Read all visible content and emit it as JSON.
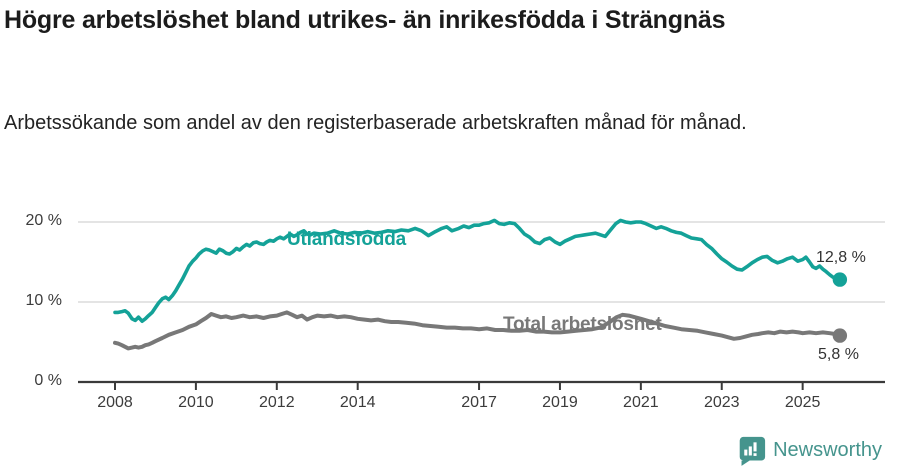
{
  "page": {
    "title": "Högre arbetslöshet bland utrikes- än inrikesfödda i Strängnäs",
    "subtitle": "Arbetssökande som andel av den registerbaserade arbetskraften månad för månad."
  },
  "footer": {
    "brand": "Newsworthy",
    "logo_icon": "newsworthy-speech-bubble-bar-chart-icon",
    "brand_color": "#45948d"
  },
  "chart_data": {
    "type": "line",
    "title": "Högre arbetslöshet bland utrikes- än inrikesfödda i Strängnäs",
    "subtitle": "Arbetssökande som andel av den registerbaserade arbetskraften månad för månad.",
    "grid": "horizontal",
    "legend": "inline-labels",
    "colors": {
      "grid": "#dcdcdc",
      "axis": "#3a3a3a",
      "tick_text": "#3c3c3c"
    },
    "x_axis": {
      "range": [
        2008,
        2026.1
      ],
      "ticks": [
        "2008",
        "2010",
        "2012",
        "2014",
        "2017",
        "2019",
        "2021",
        "2023",
        "2025"
      ],
      "tick_years": [
        2008,
        2010,
        2012,
        2014,
        2017,
        2019,
        2021,
        2023,
        2025
      ]
    },
    "y_axis": {
      "range": [
        0,
        22
      ],
      "unit": "%",
      "ticks": [
        {
          "label": "0 %",
          "value": 0
        },
        {
          "label": "10 %",
          "value": 10
        },
        {
          "label": "20 %",
          "value": 20
        }
      ]
    },
    "series": [
      {
        "name": "Utlandsfödda",
        "color": "#14a298",
        "end_label": "12,8 %",
        "end_value": 12.8,
        "points": [
          [
            2008.0,
            8.7
          ],
          [
            2008.08,
            8.7
          ],
          [
            2008.17,
            8.8
          ],
          [
            2008.25,
            8.9
          ],
          [
            2008.33,
            8.6
          ],
          [
            2008.42,
            7.9
          ],
          [
            2008.5,
            7.7
          ],
          [
            2008.58,
            8.1
          ],
          [
            2008.67,
            7.6
          ],
          [
            2008.75,
            7.9
          ],
          [
            2008.83,
            8.3
          ],
          [
            2008.92,
            8.7
          ],
          [
            2009.0,
            9.3
          ],
          [
            2009.08,
            9.9
          ],
          [
            2009.17,
            10.4
          ],
          [
            2009.25,
            10.6
          ],
          [
            2009.33,
            10.3
          ],
          [
            2009.42,
            10.8
          ],
          [
            2009.5,
            11.4
          ],
          [
            2009.58,
            12.1
          ],
          [
            2009.67,
            12.9
          ],
          [
            2009.75,
            13.7
          ],
          [
            2009.83,
            14.5
          ],
          [
            2009.92,
            15.1
          ],
          [
            2010.0,
            15.5
          ],
          [
            2010.08,
            16.0
          ],
          [
            2010.17,
            16.4
          ],
          [
            2010.25,
            16.6
          ],
          [
            2010.33,
            16.5
          ],
          [
            2010.42,
            16.3
          ],
          [
            2010.5,
            16.1
          ],
          [
            2010.58,
            16.6
          ],
          [
            2010.67,
            16.4
          ],
          [
            2010.75,
            16.1
          ],
          [
            2010.83,
            16.0
          ],
          [
            2010.92,
            16.3
          ],
          [
            2011.0,
            16.7
          ],
          [
            2011.08,
            16.5
          ],
          [
            2011.17,
            16.9
          ],
          [
            2011.25,
            17.2
          ],
          [
            2011.33,
            17.0
          ],
          [
            2011.42,
            17.4
          ],
          [
            2011.5,
            17.5
          ],
          [
            2011.58,
            17.3
          ],
          [
            2011.67,
            17.2
          ],
          [
            2011.75,
            17.5
          ],
          [
            2011.83,
            17.7
          ],
          [
            2011.92,
            17.6
          ],
          [
            2012.0,
            17.9
          ],
          [
            2012.08,
            18.1
          ],
          [
            2012.17,
            17.9
          ],
          [
            2012.25,
            18.2
          ],
          [
            2012.33,
            18.5
          ],
          [
            2012.42,
            18.2
          ],
          [
            2012.5,
            18.4
          ],
          [
            2012.58,
            18.7
          ],
          [
            2012.67,
            18.9
          ],
          [
            2012.75,
            18.5
          ],
          [
            2012.83,
            18.4
          ],
          [
            2012.92,
            18.6
          ],
          [
            2013.08,
            18.5
          ],
          [
            2013.25,
            18.6
          ],
          [
            2013.42,
            18.9
          ],
          [
            2013.58,
            18.6
          ],
          [
            2013.75,
            18.5
          ],
          [
            2013.92,
            18.7
          ],
          [
            2014.08,
            18.6
          ],
          [
            2014.25,
            18.8
          ],
          [
            2014.42,
            18.6
          ],
          [
            2014.58,
            18.7
          ],
          [
            2014.75,
            18.9
          ],
          [
            2014.92,
            18.8
          ],
          [
            2015.08,
            19.0
          ],
          [
            2015.25,
            18.9
          ],
          [
            2015.42,
            19.2
          ],
          [
            2015.58,
            18.9
          ],
          [
            2015.75,
            18.3
          ],
          [
            2015.92,
            18.8
          ],
          [
            2016.08,
            19.2
          ],
          [
            2016.2,
            19.4
          ],
          [
            2016.33,
            18.9
          ],
          [
            2016.5,
            19.2
          ],
          [
            2016.62,
            19.5
          ],
          [
            2016.75,
            19.3
          ],
          [
            2016.88,
            19.6
          ],
          [
            2017.0,
            19.6
          ],
          [
            2017.12,
            19.8
          ],
          [
            2017.25,
            19.9
          ],
          [
            2017.38,
            20.2
          ],
          [
            2017.5,
            19.8
          ],
          [
            2017.62,
            19.7
          ],
          [
            2017.75,
            19.9
          ],
          [
            2017.88,
            19.8
          ],
          [
            2018.0,
            19.2
          ],
          [
            2018.12,
            18.5
          ],
          [
            2018.25,
            18.1
          ],
          [
            2018.38,
            17.5
          ],
          [
            2018.5,
            17.3
          ],
          [
            2018.62,
            17.8
          ],
          [
            2018.75,
            18.0
          ],
          [
            2018.88,
            17.5
          ],
          [
            2019.0,
            17.2
          ],
          [
            2019.12,
            17.6
          ],
          [
            2019.25,
            17.9
          ],
          [
            2019.38,
            18.2
          ],
          [
            2019.5,
            18.3
          ],
          [
            2019.62,
            18.4
          ],
          [
            2019.75,
            18.5
          ],
          [
            2019.88,
            18.6
          ],
          [
            2020.0,
            18.4
          ],
          [
            2020.12,
            18.2
          ],
          [
            2020.25,
            19.0
          ],
          [
            2020.38,
            19.8
          ],
          [
            2020.5,
            20.2
          ],
          [
            2020.62,
            20.0
          ],
          [
            2020.75,
            19.9
          ],
          [
            2020.88,
            20.0
          ],
          [
            2021.0,
            20.0
          ],
          [
            2021.12,
            19.8
          ],
          [
            2021.25,
            19.5
          ],
          [
            2021.38,
            19.2
          ],
          [
            2021.5,
            19.4
          ],
          [
            2021.62,
            19.2
          ],
          [
            2021.75,
            18.9
          ],
          [
            2021.88,
            18.7
          ],
          [
            2022.0,
            18.6
          ],
          [
            2022.12,
            18.3
          ],
          [
            2022.25,
            18.0
          ],
          [
            2022.38,
            17.9
          ],
          [
            2022.5,
            17.8
          ],
          [
            2022.62,
            17.2
          ],
          [
            2022.75,
            16.7
          ],
          [
            2022.88,
            16.0
          ],
          [
            2023.0,
            15.4
          ],
          [
            2023.12,
            15.0
          ],
          [
            2023.25,
            14.5
          ],
          [
            2023.38,
            14.1
          ],
          [
            2023.5,
            14.0
          ],
          [
            2023.62,
            14.4
          ],
          [
            2023.75,
            14.9
          ],
          [
            2023.88,
            15.3
          ],
          [
            2024.0,
            15.6
          ],
          [
            2024.12,
            15.7
          ],
          [
            2024.25,
            15.2
          ],
          [
            2024.38,
            14.9
          ],
          [
            2024.5,
            15.1
          ],
          [
            2024.62,
            15.4
          ],
          [
            2024.75,
            15.6
          ],
          [
            2024.88,
            15.1
          ],
          [
            2025.0,
            15.3
          ],
          [
            2025.08,
            15.6
          ],
          [
            2025.17,
            15.0
          ],
          [
            2025.25,
            14.4
          ],
          [
            2025.33,
            14.2
          ],
          [
            2025.42,
            14.5
          ],
          [
            2025.5,
            14.1
          ],
          [
            2025.58,
            13.8
          ],
          [
            2025.67,
            13.4
          ],
          [
            2025.75,
            13.1
          ],
          [
            2025.92,
            12.8
          ]
        ]
      },
      {
        "name": "Total arbetslöshet",
        "color": "#787878",
        "end_label": "5,8 %",
        "end_value": 5.8,
        "points": [
          [
            2008.0,
            4.9
          ],
          [
            2008.08,
            4.8
          ],
          [
            2008.17,
            4.6
          ],
          [
            2008.25,
            4.4
          ],
          [
            2008.33,
            4.2
          ],
          [
            2008.42,
            4.3
          ],
          [
            2008.5,
            4.4
          ],
          [
            2008.58,
            4.3
          ],
          [
            2008.67,
            4.4
          ],
          [
            2008.75,
            4.6
          ],
          [
            2008.83,
            4.7
          ],
          [
            2008.92,
            4.9
          ],
          [
            2009.0,
            5.1
          ],
          [
            2009.17,
            5.5
          ],
          [
            2009.33,
            5.9
          ],
          [
            2009.5,
            6.2
          ],
          [
            2009.67,
            6.5
          ],
          [
            2009.83,
            6.9
          ],
          [
            2010.0,
            7.2
          ],
          [
            2010.12,
            7.6
          ],
          [
            2010.25,
            8.0
          ],
          [
            2010.38,
            8.5
          ],
          [
            2010.5,
            8.3
          ],
          [
            2010.62,
            8.1
          ],
          [
            2010.75,
            8.2
          ],
          [
            2010.88,
            8.0
          ],
          [
            2011.0,
            8.1
          ],
          [
            2011.17,
            8.3
          ],
          [
            2011.33,
            8.1
          ],
          [
            2011.5,
            8.2
          ],
          [
            2011.67,
            8.0
          ],
          [
            2011.83,
            8.2
          ],
          [
            2012.0,
            8.3
          ],
          [
            2012.12,
            8.5
          ],
          [
            2012.25,
            8.7
          ],
          [
            2012.38,
            8.4
          ],
          [
            2012.5,
            8.1
          ],
          [
            2012.62,
            8.3
          ],
          [
            2012.75,
            7.8
          ],
          [
            2012.88,
            8.1
          ],
          [
            2013.0,
            8.3
          ],
          [
            2013.17,
            8.2
          ],
          [
            2013.33,
            8.3
          ],
          [
            2013.5,
            8.1
          ],
          [
            2013.67,
            8.2
          ],
          [
            2013.83,
            8.1
          ],
          [
            2014.0,
            7.9
          ],
          [
            2014.17,
            7.8
          ],
          [
            2014.33,
            7.7
          ],
          [
            2014.5,
            7.8
          ],
          [
            2014.67,
            7.6
          ],
          [
            2014.83,
            7.5
          ],
          [
            2015.0,
            7.5
          ],
          [
            2015.2,
            7.4
          ],
          [
            2015.4,
            7.3
          ],
          [
            2015.6,
            7.1
          ],
          [
            2015.8,
            7.0
          ],
          [
            2016.0,
            6.9
          ],
          [
            2016.2,
            6.8
          ],
          [
            2016.4,
            6.8
          ],
          [
            2016.6,
            6.7
          ],
          [
            2016.8,
            6.7
          ],
          [
            2017.0,
            6.6
          ],
          [
            2017.2,
            6.7
          ],
          [
            2017.4,
            6.5
          ],
          [
            2017.6,
            6.5
          ],
          [
            2017.8,
            6.4
          ],
          [
            2018.0,
            6.4
          ],
          [
            2018.2,
            6.5
          ],
          [
            2018.4,
            6.3
          ],
          [
            2018.6,
            6.3
          ],
          [
            2018.8,
            6.2
          ],
          [
            2019.0,
            6.2
          ],
          [
            2019.2,
            6.3
          ],
          [
            2019.4,
            6.4
          ],
          [
            2019.6,
            6.5
          ],
          [
            2019.8,
            6.6
          ],
          [
            2020.0,
            6.8
          ],
          [
            2020.2,
            7.4
          ],
          [
            2020.4,
            8.1
          ],
          [
            2020.55,
            8.4
          ],
          [
            2020.7,
            8.3
          ],
          [
            2020.85,
            8.1
          ],
          [
            2021.0,
            7.9
          ],
          [
            2021.2,
            7.6
          ],
          [
            2021.4,
            7.3
          ],
          [
            2021.6,
            7.0
          ],
          [
            2021.8,
            6.8
          ],
          [
            2022.0,
            6.6
          ],
          [
            2022.2,
            6.5
          ],
          [
            2022.4,
            6.4
          ],
          [
            2022.6,
            6.2
          ],
          [
            2022.8,
            6.0
          ],
          [
            2023.0,
            5.8
          ],
          [
            2023.15,
            5.6
          ],
          [
            2023.3,
            5.4
          ],
          [
            2023.45,
            5.5
          ],
          [
            2023.6,
            5.7
          ],
          [
            2023.75,
            5.9
          ],
          [
            2023.9,
            6.0
          ],
          [
            2024.0,
            6.1
          ],
          [
            2024.15,
            6.2
          ],
          [
            2024.3,
            6.1
          ],
          [
            2024.45,
            6.3
          ],
          [
            2024.6,
            6.2
          ],
          [
            2024.75,
            6.3
          ],
          [
            2024.9,
            6.2
          ],
          [
            2025.0,
            6.1
          ],
          [
            2025.17,
            6.2
          ],
          [
            2025.33,
            6.1
          ],
          [
            2025.5,
            6.2
          ],
          [
            2025.67,
            6.1
          ],
          [
            2025.8,
            6.0
          ],
          [
            2025.92,
            5.8
          ]
        ]
      }
    ]
  }
}
